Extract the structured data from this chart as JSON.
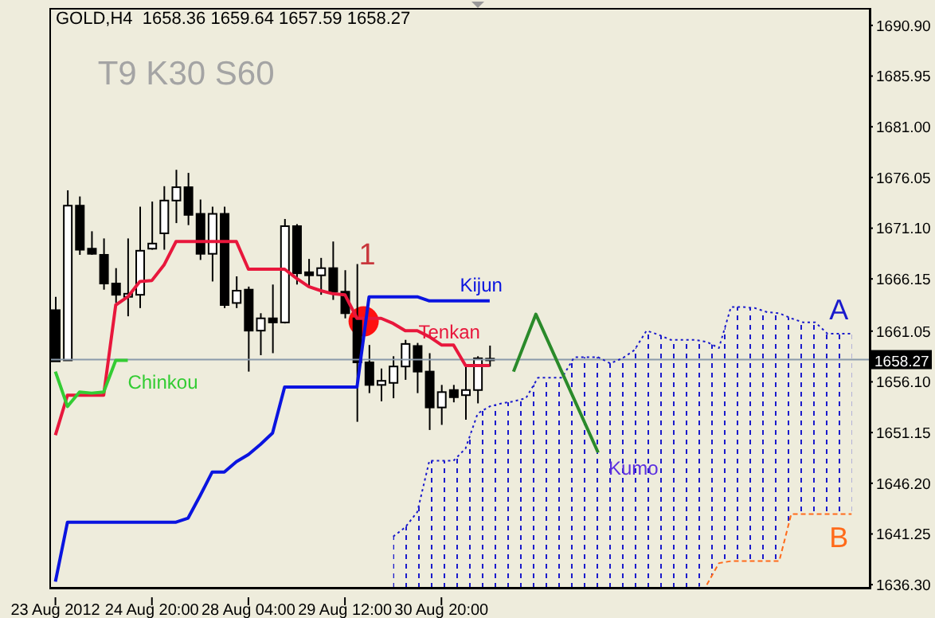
{
  "chart_data": {
    "type": "candlestick",
    "title": "GOLD,H4  1658.36 1659.64 1657.59 1658.27",
    "annotations": [
      "T9 K30 S60",
      "1",
      "Kumo"
    ],
    "categories": [
      "23 Aug 2012",
      null,
      null,
      null,
      null,
      null,
      null,
      null,
      "24 Aug 20:00",
      null,
      null,
      null,
      null,
      null,
      null,
      null,
      "28 Aug 04:00",
      null,
      null,
      null,
      null,
      null,
      null,
      null,
      "29 Aug 12:00",
      null,
      null,
      null,
      null,
      null,
      null,
      null,
      "30 Aug 20:00",
      null,
      null,
      null,
      null,
      null,
      null,
      null,
      null,
      null,
      null,
      null,
      null,
      null,
      null,
      null,
      null,
      null,
      null,
      null,
      null,
      null,
      null,
      null,
      null,
      null,
      null,
      null,
      null,
      null,
      null,
      null,
      null,
      null,
      null,
      null
    ],
    "ohlc": [
      [
        1663.1,
        1664.4,
        1658.1,
        1658.1
      ],
      [
        1658.2,
        1674.8,
        1658.2,
        1673.3
      ],
      [
        1673.3,
        1674.2,
        1668.5,
        1669.0
      ],
      [
        1669.1,
        1670.8,
        1668.5,
        1668.6
      ],
      [
        1668.5,
        1670.1,
        1665.1,
        1665.7
      ],
      [
        1665.7,
        1667.2,
        1663.8,
        1664.6
      ],
      [
        1664.4,
        1670.1,
        1662.5,
        1664.7
      ],
      [
        1664.6,
        1673.2,
        1663.3,
        1668.9
      ],
      [
        1669.1,
        1673.7,
        1669.0,
        1669.6
      ],
      [
        1670.6,
        1675.2,
        1669.0,
        1673.8
      ],
      [
        1673.8,
        1676.8,
        1671.6,
        1675.1
      ],
      [
        1675.1,
        1676.5,
        1671.4,
        1672.4
      ],
      [
        1672.5,
        1673.9,
        1668.0,
        1668.6
      ],
      [
        1668.6,
        1673.2,
        1665.9,
        1672.5
      ],
      [
        1672.5,
        1673.2,
        1663.3,
        1663.6
      ],
      [
        1663.8,
        1666.4,
        1663.3,
        1665.0
      ],
      [
        1665.1,
        1665.4,
        1657.1,
        1661.1
      ],
      [
        1661.1,
        1662.8,
        1658.7,
        1662.3
      ],
      [
        1662.3,
        1665.6,
        1658.9,
        1661.9
      ],
      [
        1661.9,
        1672.0,
        1661.8,
        1671.3
      ],
      [
        1671.3,
        1671.5,
        1665.6,
        1666.7
      ],
      [
        1666.8,
        1668.1,
        1665.4,
        1666.5
      ],
      [
        1666.5,
        1668.2,
        1664.6,
        1667.2
      ],
      [
        1667.2,
        1669.8,
        1664.1,
        1664.9
      ],
      [
        1664.9,
        1667.0,
        1662.3,
        1662.8
      ],
      [
        1662.3,
        1667.6,
        1652.2,
        1658.0
      ],
      [
        1658.0,
        1659.7,
        1655.0,
        1655.8
      ],
      [
        1655.8,
        1657.4,
        1654.2,
        1656.2
      ],
      [
        1656.0,
        1658.6,
        1654.5,
        1657.6
      ],
      [
        1657.6,
        1660.2,
        1656.3,
        1659.8
      ],
      [
        1659.6,
        1659.9,
        1655.0,
        1657.1
      ],
      [
        1657.1,
        1658.9,
        1651.4,
        1653.6
      ],
      [
        1653.6,
        1655.8,
        1651.9,
        1655.1
      ],
      [
        1655.3,
        1655.8,
        1654.1,
        1654.6
      ],
      [
        1654.8,
        1657.6,
        1652.4,
        1655.3
      ],
      [
        1655.3,
        1658.6,
        1654.0,
        1658.4
      ],
      [
        1658.36,
        1659.64,
        1657.59,
        1658.27
      ],
      null,
      null,
      null,
      null,
      null,
      null,
      null,
      null,
      null,
      null,
      null,
      null,
      null,
      null,
      null,
      null,
      null,
      null,
      null,
      null,
      null,
      null,
      null,
      null,
      null,
      null,
      null,
      null,
      null,
      null,
      null
    ],
    "series": [
      {
        "name": "Tenkan",
        "type": "line",
        "color": "#e8173c",
        "line_style": "solid",
        "values": [
          1650.9,
          1654.8,
          1654.8,
          1654.8,
          1654.8,
          1663.6,
          1664.4,
          1665.9,
          1666.0,
          1667.5,
          1669.8,
          1669.8,
          1669.8,
          1669.8,
          1669.8,
          1669.8,
          1667.1,
          1667.1,
          1667.1,
          1667.1,
          1666.2,
          1665.4,
          1665.0,
          1664.7,
          1664.6,
          1662.3,
          1662.3,
          1662.3,
          1661.8,
          1661.1,
          1661.1,
          1660.5,
          1659.7,
          1659.7,
          1657.7,
          1657.7,
          1657.7,
          null,
          null,
          null,
          null,
          null,
          null,
          null,
          null,
          null,
          null,
          null,
          null,
          null,
          null,
          null,
          null,
          null,
          null,
          null,
          null,
          null,
          null,
          null,
          null,
          null,
          null,
          null,
          null,
          null,
          null,
          null
        ]
      },
      {
        "name": "Kijun",
        "type": "line",
        "color": "#0a14e0",
        "line_style": "solid",
        "values": [
          1636.6,
          1642.4,
          1642.4,
          1642.4,
          1642.4,
          1642.4,
          1642.4,
          1642.4,
          1642.4,
          1642.4,
          1642.4,
          1642.8,
          1645.0,
          1647.3,
          1647.3,
          1648.3,
          1649.0,
          1650.0,
          1651.1,
          1655.6,
          1655.6,
          1655.6,
          1655.6,
          1655.6,
          1655.6,
          1655.6,
          1664.4,
          1664.4,
          1664.4,
          1664.4,
          1664.4,
          1664.0,
          1664.0,
          1664.0,
          1664.0,
          1664.0,
          1664.0,
          null,
          null,
          null,
          null,
          null,
          null,
          null,
          null,
          null,
          null,
          null,
          null,
          null,
          null,
          null,
          null,
          null,
          null,
          null,
          null,
          null,
          null,
          null,
          null,
          null,
          null,
          null,
          null,
          null,
          null,
          null
        ]
      },
      {
        "name": "Chinkou",
        "type": "line",
        "color": "#33cc33",
        "line_style": "solid",
        "values": [
          1657.1,
          1653.7,
          1655.1,
          1655.0,
          1655.1,
          1658.2,
          1658.2,
          null,
          null,
          null,
          null,
          null,
          null,
          null,
          null,
          null,
          null,
          null,
          null,
          null,
          null,
          null,
          null,
          null,
          null,
          null,
          null,
          null,
          null,
          null,
          null,
          null,
          null,
          null,
          null,
          null,
          null,
          null,
          null,
          null,
          null,
          null,
          null,
          null,
          null,
          null,
          null,
          null,
          null,
          null,
          null,
          null,
          null,
          null,
          null,
          null,
          null,
          null,
          null,
          null,
          null,
          null,
          null,
          null,
          null,
          null,
          null,
          null
        ]
      },
      {
        "name": "A",
        "type": "line",
        "color": "#1a1acc",
        "line_style": "dotted",
        "values": [
          null,
          null,
          null,
          null,
          null,
          null,
          null,
          null,
          null,
          null,
          null,
          null,
          null,
          null,
          null,
          null,
          null,
          null,
          null,
          null,
          null,
          null,
          null,
          null,
          null,
          null,
          null,
          null,
          1641.0,
          1641.9,
          1643.4,
          1648.4,
          1648.4,
          1648.4,
          1649.6,
          1653.0,
          1653.7,
          1654.0,
          1654.2,
          1654.5,
          1656.5,
          1656.5,
          1656.5,
          1658.5,
          1658.5,
          1658.5,
          1657.9,
          1658.4,
          1659.2,
          1661.1,
          1660.7,
          1660.2,
          1660.2,
          1660.2,
          1660.0,
          1659.4,
          1663.4,
          1663.4,
          1663.3,
          1662.9,
          1662.8,
          1662.3,
          1661.9,
          1661.9,
          1660.8,
          1660.8,
          1660.8,
          null
        ]
      },
      {
        "name": "B",
        "type": "line",
        "color": "#ff6a1a",
        "line_style": "dashed",
        "values": [
          null,
          null,
          null,
          null,
          null,
          null,
          null,
          null,
          null,
          null,
          null,
          null,
          null,
          null,
          null,
          null,
          null,
          null,
          null,
          null,
          null,
          null,
          null,
          null,
          null,
          null,
          null,
          null,
          null,
          null,
          null,
          null,
          null,
          null,
          null,
          null,
          null,
          null,
          null,
          null,
          null,
          null,
          null,
          null,
          null,
          null,
          null,
          null,
          null,
          null,
          null,
          null,
          null,
          null,
          1636.3,
          1638.4,
          1638.6,
          1638.6,
          1638.6,
          1638.6,
          1638.6,
          1643.2,
          1643.2,
          1643.2,
          1643.2,
          1643.2,
          1643.2,
          null
        ]
      }
    ],
    "ref_lines": [
      {
        "axis": "y",
        "value": 1658.27,
        "label": "1658.27",
        "color": "#8a9aaa"
      }
    ],
    "ylim": [
      1636.0,
      1692.6
    ],
    "yticks": [
      {
        "value": 1690.9,
        "label": "1690.90"
      },
      1685.95,
      {
        "value": 1681.0,
        "label": "1681.00"
      },
      1676.05,
      {
        "value": 1671.1,
        "label": "1671.10"
      },
      1666.15,
      1661.05,
      {
        "value": 1656.1,
        "label": "1656.10"
      },
      1651.15,
      {
        "value": 1646.2,
        "label": "1646.20"
      },
      1641.25,
      {
        "value": 1636.3,
        "label": "1636.30"
      }
    ],
    "grid": false,
    "legend": false
  }
}
